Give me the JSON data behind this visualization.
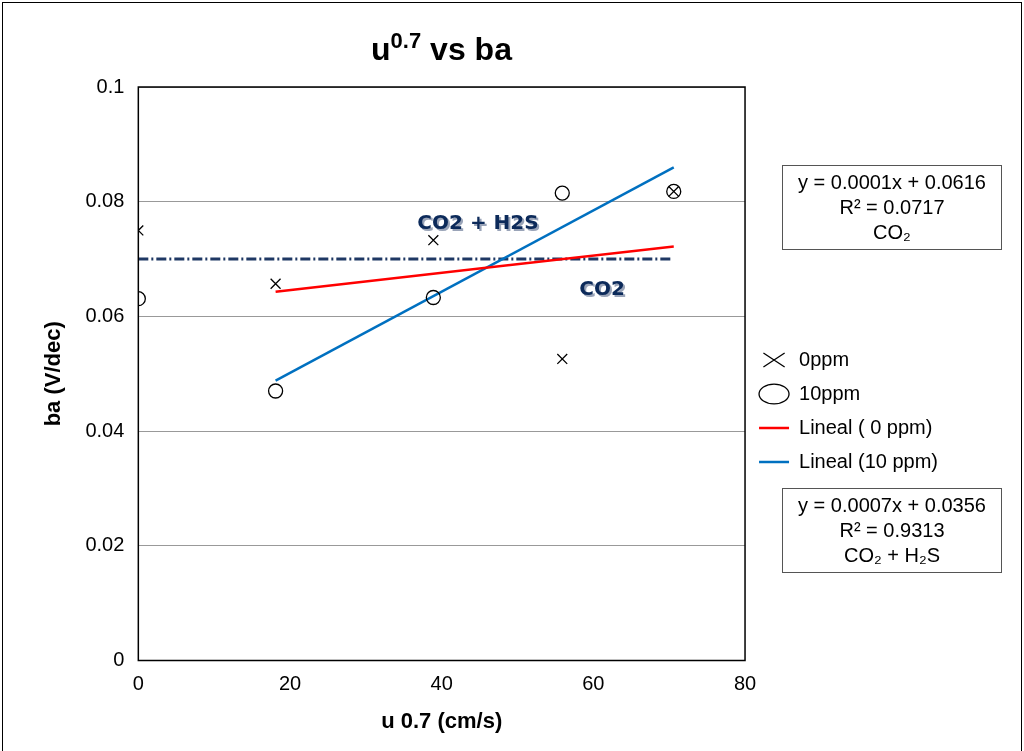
{
  "chart_data": {
    "type": "scatter",
    "title": "u$^{0.7}$ vs ba",
    "xlabel": "u 0.7 (cm/s)",
    "ylabel": "ba (V/dec)",
    "xlim": [
      0,
      80
    ],
    "xticks": [
      0,
      20,
      40,
      60,
      80
    ],
    "ylim": [
      0,
      0.1
    ],
    "yticks": [
      0,
      0.02,
      0.04,
      0.06,
      0.08,
      0.1
    ],
    "grid": "y",
    "legend": "right",
    "series": [
      {
        "name": "0ppm",
        "type": "scatter",
        "marker": "cross",
        "color": "#000000",
        "x": [
          0,
          18.1,
          38.9,
          55.9,
          70.6
        ],
        "values": [
          0.075,
          0.0657,
          0.0733,
          0.0526,
          0.0818
        ]
      },
      {
        "name": "10ppm",
        "type": "scatter",
        "marker": "circle",
        "color": "#000000",
        "x": [
          0,
          18.1,
          38.9,
          55.9,
          70.6
        ],
        "values": [
          0.0631,
          0.047,
          0.0633,
          0.0815,
          0.0818
        ]
      },
      {
        "name": "Lineal ( 0 ppm)",
        "type": "line",
        "color": "#ff0000",
        "x": [
          18.1,
          70.6
        ],
        "values": [
          0.0643,
          0.0722
        ]
      },
      {
        "name": "Lineal (10 ppm)",
        "type": "line",
        "color": "#0070c0",
        "x": [
          18.1,
          70.6
        ],
        "values": [
          0.0488,
          0.086
        ]
      },
      {
        "type": "line",
        "color": "#1f3864",
        "line_style": "dashed",
        "x": [
          0,
          70.4
        ],
        "values": [
          0.07,
          0.07
        ]
      }
    ],
    "annotations": [
      "y = 0.0001x + 0.0616\nR² = 0.0717\nCO₂",
      "y = 0.0007x + 0.0356\nR² = 0.9313\nCO₂ + H₂S",
      "CO2 + H2S",
      "CO2"
    ]
  }
}
